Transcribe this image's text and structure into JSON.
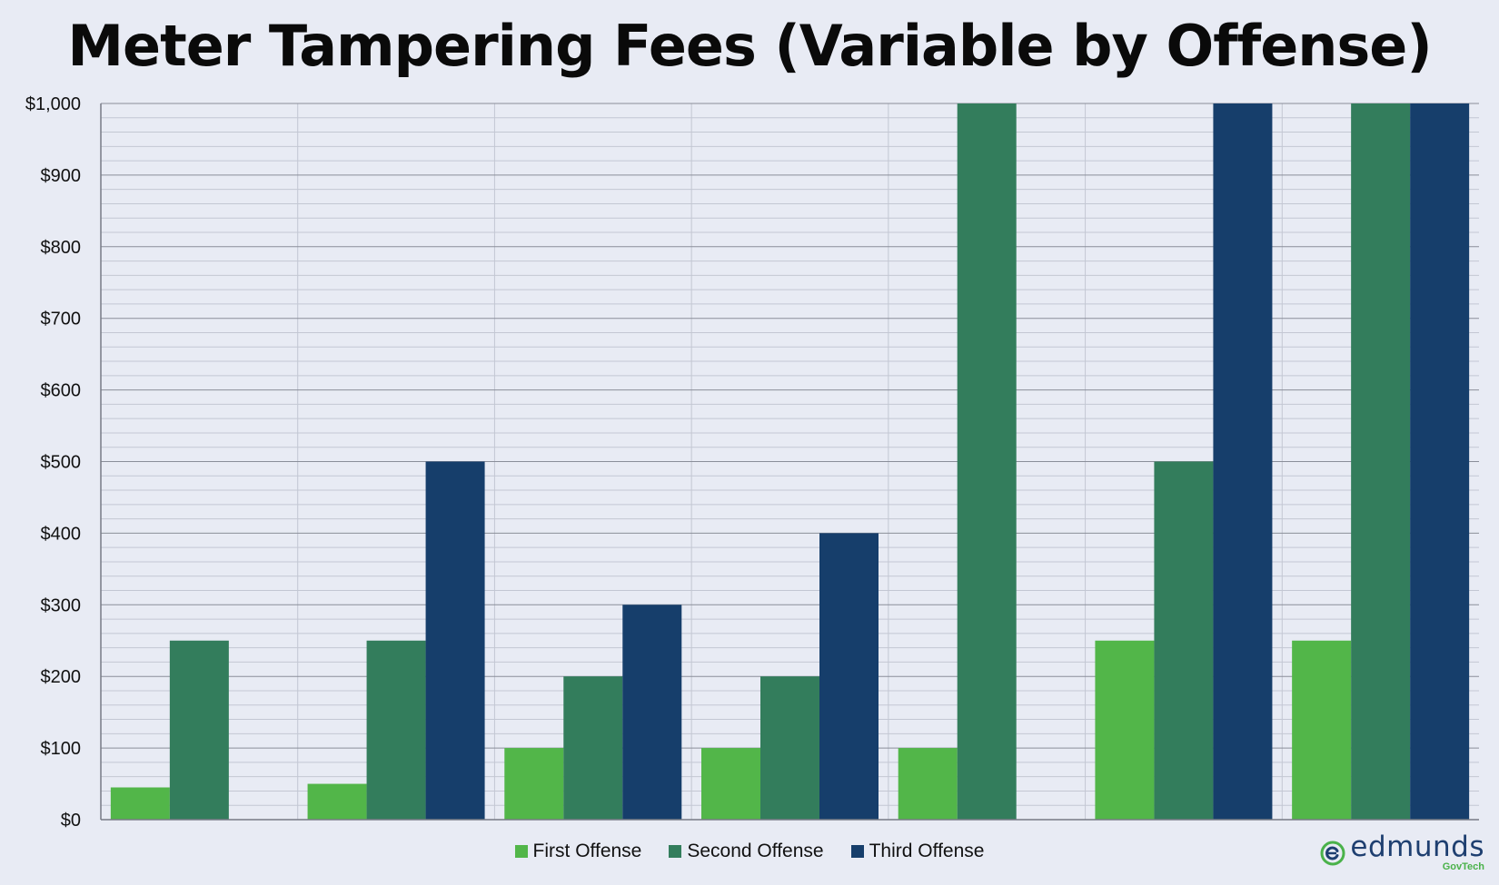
{
  "chart_data": {
    "type": "bar",
    "title": "Meter Tampering Fees (Variable by Offense)",
    "xlabel": "",
    "ylabel": "",
    "ylim": [
      0,
      1000
    ],
    "y_ticks": [
      0,
      100,
      200,
      300,
      400,
      500,
      600,
      700,
      800,
      900,
      1000
    ],
    "y_tick_labels": [
      "$0",
      "$100",
      "$200",
      "$300",
      "$400",
      "$500",
      "$600",
      "$700",
      "$800",
      "$900",
      "$1,000"
    ],
    "categories": [
      "",
      "",
      "",
      "",
      "",
      "",
      ""
    ],
    "series": [
      {
        "name": "First Offense",
        "color": "#52b649",
        "values": [
          45,
          50,
          100,
          100,
          100,
          250,
          250
        ]
      },
      {
        "name": "Second Offense",
        "color": "#337d5c",
        "values": [
          250,
          250,
          200,
          200,
          1000,
          500,
          1000
        ]
      },
      {
        "name": "Third Offense",
        "color": "#163e6b",
        "values": [
          null,
          500,
          300,
          400,
          null,
          1000,
          1000
        ]
      }
    ],
    "grid": true,
    "legend_position": "bottom"
  },
  "logo": {
    "word": "edmunds",
    "sub": "GovTech",
    "icon": "edmunds-e-logo-icon",
    "colors": {
      "word": "#1e3f70",
      "accent": "#4ab24a"
    }
  }
}
